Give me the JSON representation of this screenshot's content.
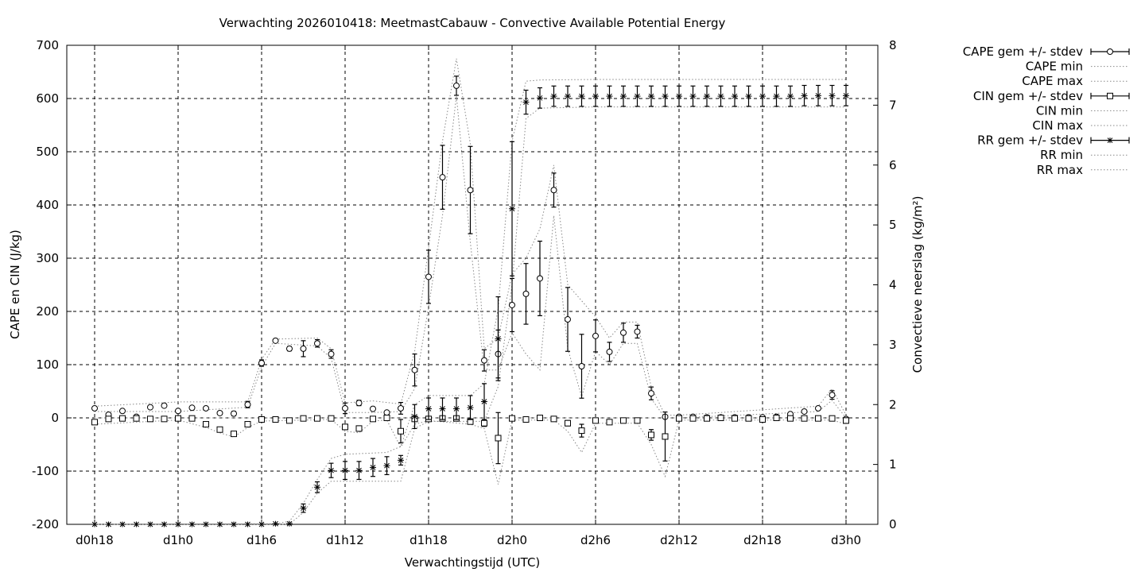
{
  "chart_data": {
    "type": "line",
    "title": "Verwachting 2026010418: MeetmastCabauw - Convective Available Potential Energy",
    "xlabel": "Verwachtingstijd (UTC)",
    "ylabel": "CAPE en CIN (J/kg)",
    "y2label": "Convectieve neerslag (kg/m²)",
    "xlim": [
      0,
      57
    ],
    "ylim": [
      -200,
      700
    ],
    "y2lim": [
      0,
      8
    ],
    "grid": true,
    "legend_position": "right, outside plot",
    "x_ticks": [
      {
        "x": 0,
        "label": "d0h18"
      },
      {
        "x": 6,
        "label": "d1h0"
      },
      {
        "x": 12,
        "label": "d1h6"
      },
      {
        "x": 18,
        "label": "d1h12"
      },
      {
        "x": 24,
        "label": "d1h18"
      },
      {
        "x": 30,
        "label": "d2h0"
      },
      {
        "x": 36,
        "label": "d2h6"
      },
      {
        "x": 42,
        "label": "d2h12"
      },
      {
        "x": 48,
        "label": "d2h18"
      },
      {
        "x": 54,
        "label": "d3h0"
      }
    ],
    "y_ticks": [
      700,
      600,
      500,
      400,
      300,
      200,
      100,
      0,
      -100,
      -200
    ],
    "y2_ticks": [
      8,
      7,
      6,
      5,
      4,
      3,
      2,
      1,
      0
    ],
    "series": [
      {
        "name": "CAPE gem +/- stdev",
        "axis": "y",
        "marker": "circle",
        "style": "errorbars",
        "x": [
          0,
          1,
          2,
          3,
          4,
          5,
          6,
          7,
          8,
          9,
          10,
          11,
          12,
          13,
          14,
          15,
          16,
          17,
          18,
          19,
          20,
          21,
          22,
          23,
          24,
          25,
          26,
          27,
          28,
          29,
          30,
          31,
          32,
          33,
          34,
          35,
          36,
          37,
          38,
          39,
          40,
          41,
          42,
          43,
          44,
          45,
          46,
          47,
          48,
          49,
          50,
          51,
          52,
          53,
          54
        ],
        "y": [
          18,
          6,
          13,
          2,
          20,
          23,
          13,
          19,
          18,
          9,
          8,
          25,
          103,
          145,
          130,
          130,
          140,
          120,
          18,
          28,
          17,
          10,
          18,
          90,
          265,
          452,
          624,
          428,
          108,
          120,
          212,
          233,
          262,
          428,
          185,
          97,
          154,
          124,
          160,
          162,
          46,
          2,
          2,
          2,
          1,
          1,
          1,
          1,
          1,
          2,
          7,
          12,
          18,
          43,
          -2
        ],
        "stdev": [
          3,
          2,
          3,
          2,
          3,
          3,
          3,
          3,
          3,
          3,
          4,
          6,
          6,
          3,
          4,
          15,
          7,
          8,
          10,
          5,
          3,
          3,
          11,
          30,
          50,
          60,
          18,
          82,
          20,
          45,
          50,
          57,
          70,
          32,
          60,
          60,
          30,
          18,
          18,
          12,
          12,
          3,
          2,
          2,
          2,
          2,
          2,
          2,
          2,
          2,
          2,
          2,
          3,
          8,
          2
        ]
      },
      {
        "name": "CAPE min",
        "axis": "y",
        "style": "dotted",
        "x": [
          0,
          6,
          11,
          12,
          13,
          16,
          17,
          18,
          20,
          22,
          23,
          24,
          25,
          26,
          27,
          28,
          29,
          30,
          31,
          32,
          33,
          34,
          35,
          36,
          37,
          38,
          39,
          40,
          41,
          42,
          52,
          53,
          54
        ],
        "y": [
          12,
          12,
          20,
          96,
          140,
          135,
          112,
          10,
          10,
          12,
          55,
          208,
          380,
          605,
          330,
          90,
          90,
          160,
          120,
          90,
          380,
          130,
          40,
          125,
          100,
          140,
          140,
          36,
          0,
          0,
          12,
          33,
          0
        ]
      },
      {
        "name": "CAPE max",
        "axis": "y",
        "style": "dotted",
        "x": [
          0,
          6,
          11,
          12,
          13,
          16,
          17,
          18,
          20,
          22,
          23,
          24,
          25,
          26,
          27,
          28,
          29,
          30,
          31,
          32,
          33,
          34,
          35,
          36,
          37,
          38,
          39,
          40,
          41,
          42,
          52,
          53,
          54
        ],
        "y": [
          22,
          30,
          30,
          110,
          148,
          150,
          130,
          28,
          32,
          26,
          125,
          320,
          520,
          675,
          515,
          130,
          150,
          270,
          300,
          355,
          475,
          250,
          220,
          190,
          150,
          180,
          180,
          58,
          5,
          5,
          22,
          55,
          5
        ]
      },
      {
        "name": "CIN gem +/- stdev",
        "axis": "y",
        "marker": "square",
        "style": "errorbars",
        "x": [
          0,
          1,
          2,
          3,
          4,
          5,
          6,
          7,
          8,
          9,
          10,
          11,
          12,
          13,
          14,
          15,
          16,
          17,
          18,
          19,
          20,
          21,
          22,
          23,
          24,
          25,
          26,
          27,
          28,
          29,
          30,
          31,
          32,
          33,
          34,
          35,
          36,
          37,
          38,
          39,
          40,
          41,
          42,
          43,
          44,
          45,
          46,
          47,
          48,
          49,
          50,
          51,
          52,
          53,
          54
        ],
        "y": [
          -8,
          -2,
          -1,
          -1,
          -2,
          -2,
          -1,
          -1,
          -12,
          -22,
          -30,
          -12,
          -3,
          -3,
          -5,
          -1,
          -1,
          -1,
          -17,
          -20,
          -2,
          0,
          -25,
          -2,
          -2,
          -1,
          -1,
          -7,
          -10,
          -38,
          -1,
          -3,
          0,
          -2,
          -10,
          -24,
          -5,
          -8,
          -5,
          -5,
          -32,
          -35,
          -1,
          -1,
          -1,
          0,
          -1,
          -1,
          -3,
          0,
          -1,
          -1,
          -1,
          -1,
          -5
        ],
        "stdev": [
          4,
          1,
          1,
          1,
          1,
          1,
          1,
          1,
          3,
          4,
          4,
          4,
          2,
          2,
          2,
          1,
          1,
          1,
          5,
          5,
          2,
          2,
          22,
          2,
          2,
          2,
          2,
          3,
          6,
          48,
          2,
          2,
          1,
          2,
          5,
          12,
          3,
          3,
          3,
          2,
          10,
          46,
          2,
          2,
          1,
          1,
          1,
          1,
          4,
          1,
          1,
          1,
          1,
          1,
          5
        ]
      },
      {
        "name": "CIN min",
        "axis": "y",
        "style": "dotted",
        "x": [
          0,
          6,
          8,
          9,
          10,
          11,
          12,
          17,
          18,
          19,
          20,
          21,
          22,
          23,
          24,
          27,
          28,
          29,
          30,
          33,
          34,
          35,
          36,
          39,
          40,
          41,
          42,
          53,
          54
        ],
        "y": [
          -12,
          -4,
          -18,
          -28,
          -36,
          -18,
          -6,
          -3,
          -25,
          -28,
          -6,
          -4,
          -55,
          -12,
          -5,
          -12,
          -20,
          -125,
          -4,
          -4,
          -25,
          -65,
          -10,
          -10,
          -50,
          -110,
          -4,
          -4,
          -12
        ]
      },
      {
        "name": "CIN max",
        "axis": "y",
        "style": "dotted",
        "x": [
          0,
          54
        ],
        "y": [
          0,
          0
        ]
      },
      {
        "name": "RR gem +/- stdev",
        "axis": "y2",
        "marker": "asterisk",
        "style": "errorbars",
        "x": [
          0,
          1,
          2,
          3,
          4,
          5,
          6,
          7,
          8,
          9,
          10,
          11,
          12,
          13,
          14,
          15,
          16,
          17,
          18,
          19,
          20,
          21,
          22,
          23,
          24,
          25,
          26,
          27,
          28,
          29,
          30,
          31,
          32,
          33,
          34,
          35,
          36,
          37,
          38,
          39,
          40,
          41,
          42,
          43,
          44,
          45,
          46,
          47,
          48,
          49,
          50,
          51,
          52,
          53,
          54
        ],
        "y": [
          0,
          0,
          0,
          0,
          0,
          0,
          0,
          0,
          0,
          0,
          0,
          0,
          0,
          0.01,
          0.01,
          0.27,
          0.62,
          0.9,
          0.9,
          0.9,
          0.95,
          0.98,
          1.07,
          1.8,
          1.93,
          1.93,
          1.93,
          1.95,
          2.05,
          3.1,
          5.27,
          7.05,
          7.12,
          7.15,
          7.15,
          7.15,
          7.15,
          7.15,
          7.15,
          7.15,
          7.15,
          7.15,
          7.15,
          7.15,
          7.15,
          7.15,
          7.15,
          7.15,
          7.15,
          7.15,
          7.15,
          7.16,
          7.16,
          7.16,
          7.16
        ],
        "stdev": [
          0,
          0,
          0,
          0,
          0,
          0,
          0,
          0,
          0,
          0,
          0,
          0,
          0,
          0,
          0,
          0.07,
          0.09,
          0.12,
          0.15,
          0.15,
          0.15,
          0.15,
          0.08,
          0.2,
          0.18,
          0.18,
          0.18,
          0.2,
          0.3,
          0.7,
          1.12,
          0.2,
          0.17,
          0.17,
          0.17,
          0.17,
          0.17,
          0.17,
          0.17,
          0.17,
          0.17,
          0.17,
          0.17,
          0.17,
          0.17,
          0.17,
          0.17,
          0.17,
          0.17,
          0.17,
          0.17,
          0.17,
          0.17,
          0.17,
          0.17
        ]
      },
      {
        "name": "RR min",
        "axis": "y2",
        "style": "dotted",
        "x": [
          0,
          13,
          14,
          15,
          16,
          17,
          18,
          21,
          22,
          23,
          24,
          27,
          28,
          29,
          30,
          31,
          32,
          36,
          54
        ],
        "y": [
          0,
          0,
          0,
          0.2,
          0.52,
          0.72,
          0.72,
          0.72,
          0.72,
          1.6,
          1.72,
          1.72,
          1.72,
          2.3,
          4.0,
          6.78,
          6.95,
          6.97,
          6.97
        ]
      },
      {
        "name": "RR max",
        "axis": "y2",
        "style": "dotted",
        "x": [
          0,
          13,
          14,
          15,
          16,
          17,
          18,
          21,
          22,
          23,
          24,
          27,
          28,
          29,
          30,
          31,
          32,
          36,
          54
        ],
        "y": [
          0,
          0.01,
          0.05,
          0.35,
          0.75,
          1.1,
          1.17,
          1.2,
          1.3,
          2.0,
          2.15,
          2.15,
          2.35,
          3.6,
          6.4,
          7.4,
          7.42,
          7.43,
          7.43
        ]
      }
    ]
  }
}
